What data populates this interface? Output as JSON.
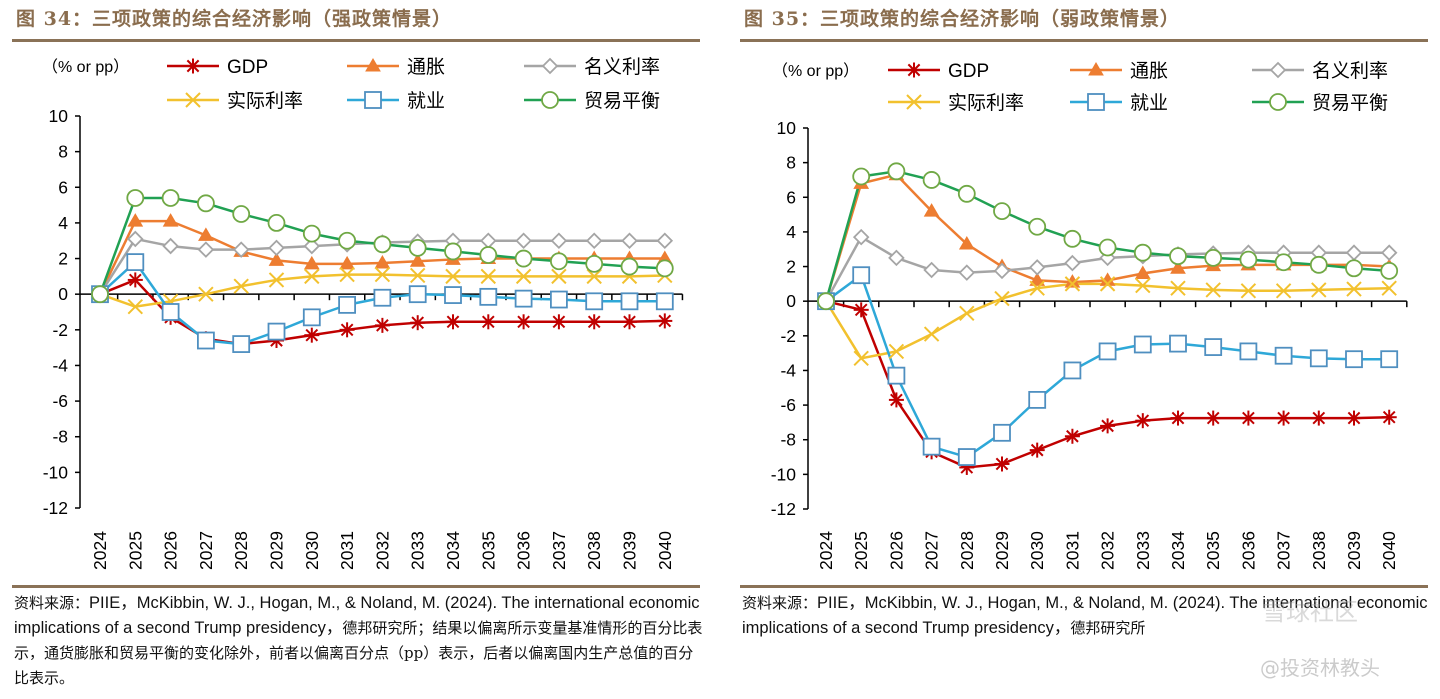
{
  "figures": [
    {
      "title": "图 34：三项政策的综合经济影响（强政策情景）",
      "note_parts": [
        {
          "cn": true,
          "text": "资料来源："
        },
        {
          "cn": false,
          "text": "PIIE，McKibbin, W. J., Hogan, M., & Noland, M. (2024). The international economic implications of a second Trump presidency，"
        },
        {
          "cn": true,
          "text": "德邦研究所；结果以偏离所示变量基准情形的百分比表示，通货膨胀和贸易平衡的变化除外，前者以偏离百分点（pp）表示，后者以偏离国内生产总值的百分比表示。"
        }
      ]
    },
    {
      "title": "图 35：三项政策的综合经济影响（弱政策情景）",
      "note_parts": [
        {
          "cn": true,
          "text": "资料来源："
        },
        {
          "cn": false,
          "text": "PIIE，McKibbin, W. J., Hogan, M., & Noland, M. (2024). The international economic implications of a second Trump presidency，"
        },
        {
          "cn": true,
          "text": "德邦研究所"
        }
      ]
    }
  ],
  "watermark": {
    "logo_text": "雪球社区",
    "handle": "@投资林教头"
  },
  "colors": {
    "title": "#8a6d4e",
    "rule": "#8a7257",
    "gdp": "#c00000",
    "inflation": "#ed7d31",
    "nominal_rate": "#a5a5a5",
    "real_rate": "#f2c12e",
    "employment": "#2ea8d8",
    "trade_balance": "#21a153"
  },
  "chart_data": [
    {
      "type": "line",
      "title": "三项政策的综合经济影响（强政策情景）",
      "unit_label": "（% or pp）",
      "xlabel": "",
      "ylabel": "",
      "x": [
        "2024",
        "2025",
        "2026",
        "2027",
        "2028",
        "2029",
        "2030",
        "2031",
        "2032",
        "2033",
        "2034",
        "2035",
        "2036",
        "2037",
        "2038",
        "2039",
        "2040"
      ],
      "ylim": [
        -12,
        10
      ],
      "yticks": [
        10,
        8,
        6,
        4,
        2,
        0,
        -2,
        -4,
        -6,
        -8,
        -10,
        -12
      ],
      "grid": false,
      "legend_position": "top",
      "series": [
        {
          "key": "gdp",
          "name": "GDP",
          "marker": "asterisk",
          "color": "#c00000",
          "values": [
            0,
            0.8,
            -1.3,
            -2.5,
            -2.8,
            -2.6,
            -2.3,
            -2.0,
            -1.75,
            -1.6,
            -1.55,
            -1.55,
            -1.55,
            -1.55,
            -1.55,
            -1.55,
            -1.5
          ]
        },
        {
          "key": "inflation",
          "name": "通胀",
          "marker": "triangle",
          "color": "#ed7d31",
          "values": [
            0,
            4.1,
            4.1,
            3.3,
            2.4,
            1.9,
            1.7,
            1.7,
            1.75,
            1.85,
            1.95,
            2.0,
            2.0,
            2.0,
            2.0,
            2.0,
            2.0
          ]
        },
        {
          "key": "nominal_rate",
          "name": "名义利率",
          "marker": "diamond",
          "color": "#a5a5a5",
          "values": [
            0,
            3.1,
            2.7,
            2.5,
            2.5,
            2.6,
            2.7,
            2.8,
            2.9,
            2.95,
            3.0,
            3.0,
            3.0,
            3.0,
            3.0,
            3.0,
            3.0
          ]
        },
        {
          "key": "real_rate",
          "name": "实际利率",
          "marker": "x",
          "color": "#f2c12e",
          "values": [
            0,
            -0.7,
            -0.4,
            0.0,
            0.45,
            0.8,
            1.0,
            1.1,
            1.1,
            1.05,
            1.0,
            1.0,
            1.0,
            1.0,
            1.0,
            1.0,
            1.05
          ]
        },
        {
          "key": "employment",
          "name": "就业",
          "marker": "square",
          "color": "#2ea8d8",
          "values": [
            0,
            1.8,
            -1.0,
            -2.6,
            -2.8,
            -2.1,
            -1.3,
            -0.6,
            -0.2,
            0.0,
            -0.05,
            -0.15,
            -0.25,
            -0.3,
            -0.4,
            -0.4,
            -0.4
          ]
        },
        {
          "key": "trade_balance",
          "name": "贸易平衡",
          "marker": "circle",
          "color": "#21a153",
          "values": [
            0,
            5.4,
            5.4,
            5.1,
            4.5,
            4.0,
            3.4,
            3.0,
            2.8,
            2.6,
            2.4,
            2.2,
            2.0,
            1.85,
            1.7,
            1.55,
            1.45
          ]
        }
      ]
    },
    {
      "type": "line",
      "title": "三项政策的综合经济影响（弱政策情景）",
      "unit_label": "（% or pp）",
      "xlabel": "",
      "ylabel": "",
      "x": [
        "2024",
        "2025",
        "2026",
        "2027",
        "2028",
        "2029",
        "2030",
        "2031",
        "2032",
        "2033",
        "2034",
        "2035",
        "2036",
        "2037",
        "2038",
        "2039",
        "2040"
      ],
      "ylim": [
        -12,
        10
      ],
      "yticks": [
        10,
        8,
        6,
        4,
        2,
        0,
        -2,
        -4,
        -6,
        -8,
        -10,
        -12
      ],
      "grid": false,
      "legend_position": "top",
      "series": [
        {
          "key": "gdp",
          "name": "GDP",
          "marker": "asterisk",
          "color": "#c00000",
          "values": [
            0,
            -0.5,
            -5.7,
            -8.7,
            -9.6,
            -9.4,
            -8.6,
            -7.8,
            -7.2,
            -6.9,
            -6.75,
            -6.75,
            -6.75,
            -6.75,
            -6.75,
            -6.75,
            -6.7
          ]
        },
        {
          "key": "inflation",
          "name": "通胀",
          "marker": "triangle",
          "color": "#ed7d31",
          "values": [
            0,
            6.8,
            7.3,
            5.2,
            3.3,
            2.0,
            1.2,
            1.1,
            1.2,
            1.6,
            1.9,
            2.05,
            2.1,
            2.1,
            2.1,
            2.1,
            2.0
          ]
        },
        {
          "key": "nominal_rate",
          "name": "名义利率",
          "marker": "diamond",
          "color": "#a5a5a5",
          "values": [
            0,
            3.7,
            2.5,
            1.8,
            1.65,
            1.75,
            1.95,
            2.2,
            2.5,
            2.6,
            2.7,
            2.75,
            2.8,
            2.8,
            2.8,
            2.8,
            2.8
          ]
        },
        {
          "key": "real_rate",
          "name": "实际利率",
          "marker": "x",
          "color": "#f2c12e",
          "values": [
            0,
            -3.3,
            -2.9,
            -1.9,
            -0.7,
            0.15,
            0.75,
            1.0,
            1.0,
            0.9,
            0.75,
            0.65,
            0.6,
            0.6,
            0.65,
            0.7,
            0.75
          ]
        },
        {
          "key": "employment",
          "name": "就业",
          "marker": "square",
          "color": "#2ea8d8",
          "values": [
            0,
            1.5,
            -4.3,
            -8.4,
            -9.0,
            -7.6,
            -5.7,
            -4.0,
            -2.9,
            -2.5,
            -2.45,
            -2.65,
            -2.9,
            -3.15,
            -3.3,
            -3.35,
            -3.35
          ]
        },
        {
          "key": "trade_balance",
          "name": "贸易平衡",
          "marker": "circle",
          "color": "#21a153",
          "values": [
            0,
            7.2,
            7.5,
            7.0,
            6.2,
            5.2,
            4.3,
            3.6,
            3.1,
            2.8,
            2.6,
            2.5,
            2.4,
            2.25,
            2.1,
            1.9,
            1.75
          ]
        }
      ]
    }
  ]
}
